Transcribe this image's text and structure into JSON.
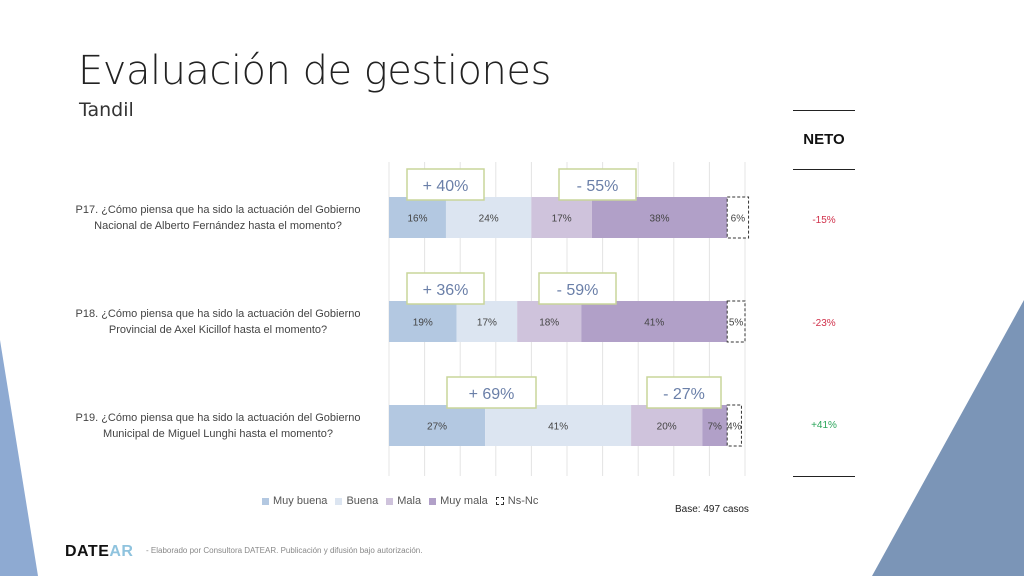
{
  "slide": {
    "title": "Evaluación de gestiones",
    "subtitle": "Tandil",
    "base": "Base: 497 casos",
    "logo": {
      "part1": "DATE",
      "part2": "AR"
    },
    "footer": "- Elaborado por Consultora DATEAR. Publicación y difusión bajo autorización."
  },
  "neto": {
    "header": "NETO",
    "values": [
      {
        "text": "-15%",
        "color": "#d0304a"
      },
      {
        "text": "-23%",
        "color": "#d0304a"
      },
      {
        "text": "+41%",
        "color": "#2aa55a"
      }
    ]
  },
  "chart_data": {
    "type": "bar",
    "orientation": "horizontal",
    "stacked": true,
    "categories": [
      "P17.  ¿Cómo piensa que ha sido la actuación del Gobierno Nacional de Alberto Fernández hasta el momento?",
      "P18. ¿Cómo piensa que ha sido la actuación del Gobierno Provincial de Axel Kicillof hasta el momento?",
      "P19. ¿Cómo piensa que ha sido la actuación del  Gobierno Municipal de Miguel Lunghi hasta el momento?"
    ],
    "category_lines": [
      [
        "P17.  ¿Cómo piensa que ha sido la actuación del Gobierno",
        "Nacional de Alberto Fernández hasta el momento?"
      ],
      [
        "P18. ¿Cómo piensa que ha sido la actuación del Gobierno",
        "Provincial de Axel Kicillof hasta el momento?"
      ],
      [
        "P19. ¿Cómo piensa que ha sido la actuación del  Gobierno",
        "Municipal de Miguel Lunghi hasta el momento?"
      ]
    ],
    "series": [
      {
        "name": "Muy buena",
        "values": [
          16,
          19,
          27
        ],
        "color": "#b3c8e1"
      },
      {
        "name": "Buena",
        "values": [
          24,
          17,
          41
        ],
        "color": "#dce5f1"
      },
      {
        "name": "Mala",
        "values": [
          17,
          18,
          20
        ],
        "color": "#cfc3dc"
      },
      {
        "name": "Muy mala",
        "values": [
          38,
          41,
          7
        ],
        "color": "#b1a0c8"
      },
      {
        "name": "Ns-Nc",
        "values": [
          6,
          5,
          4
        ],
        "color": "#ffffff",
        "dashed": true
      }
    ],
    "data_labels": [
      [
        "16%",
        "24%",
        "17%",
        "38%",
        "6%"
      ],
      [
        "19%",
        "17%",
        "18%",
        "41%",
        "5%"
      ],
      [
        "27%",
        "41%",
        "20%",
        "7%",
        "4%"
      ]
    ],
    "callouts": [
      {
        "positive": "+ 40%",
        "negative": "- 55%"
      },
      {
        "positive": "+ 36%",
        "negative": "- 59%"
      },
      {
        "positive": "+ 69%",
        "negative": "- 27%"
      }
    ],
    "xlim": [
      0,
      100
    ],
    "grid": true,
    "legend": "bottom"
  }
}
